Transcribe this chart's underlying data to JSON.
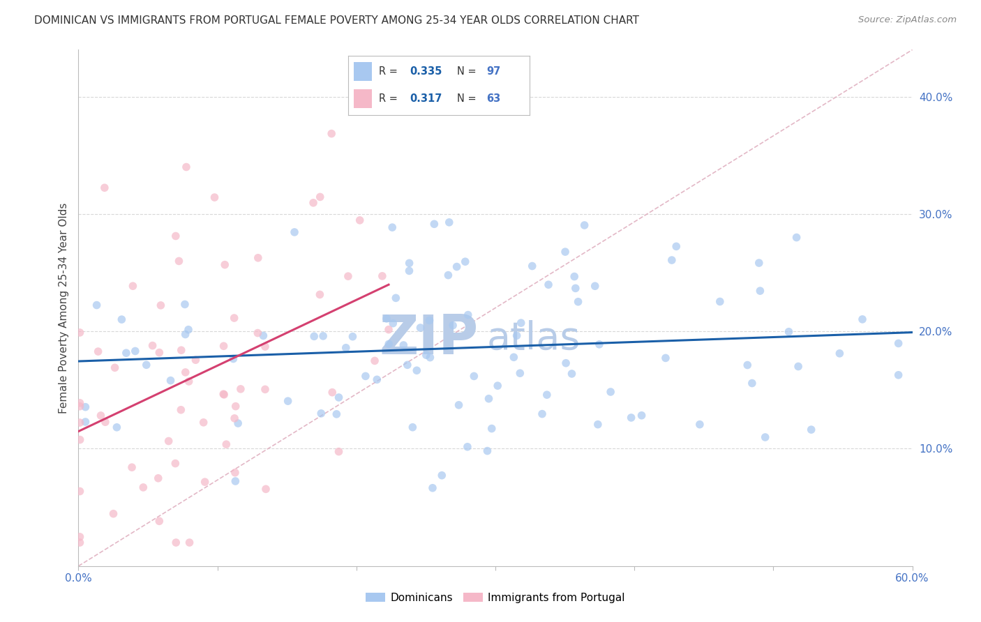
{
  "title": "DOMINICAN VS IMMIGRANTS FROM PORTUGAL FEMALE POVERTY AMONG 25-34 YEAR OLDS CORRELATION CHART",
  "source": "Source: ZipAtlas.com",
  "ylabel": "Female Poverty Among 25-34 Year Olds",
  "xlim": [
    0.0,
    0.6
  ],
  "ylim": [
    0.0,
    0.44
  ],
  "yticks": [
    0.1,
    0.2,
    0.3,
    0.4
  ],
  "xticks": [
    0.0,
    0.1,
    0.2,
    0.3,
    0.4,
    0.5,
    0.6
  ],
  "blue_color": "#a8c8f0",
  "pink_color": "#f5b8c8",
  "blue_line_color": "#1a5fa8",
  "pink_line_color": "#d44070",
  "ref_line_color": "#e0b0c0",
  "watermark_color_zip": "#b8cce8",
  "watermark_color_atlas": "#b8cce8",
  "blue_n": 97,
  "pink_n": 63,
  "blue_R": 0.335,
  "pink_R": 0.317,
  "background_color": "#ffffff",
  "grid_color": "#d8d8d8",
  "tick_color": "#4472c4",
  "title_color": "#333333",
  "source_color": "#888888"
}
